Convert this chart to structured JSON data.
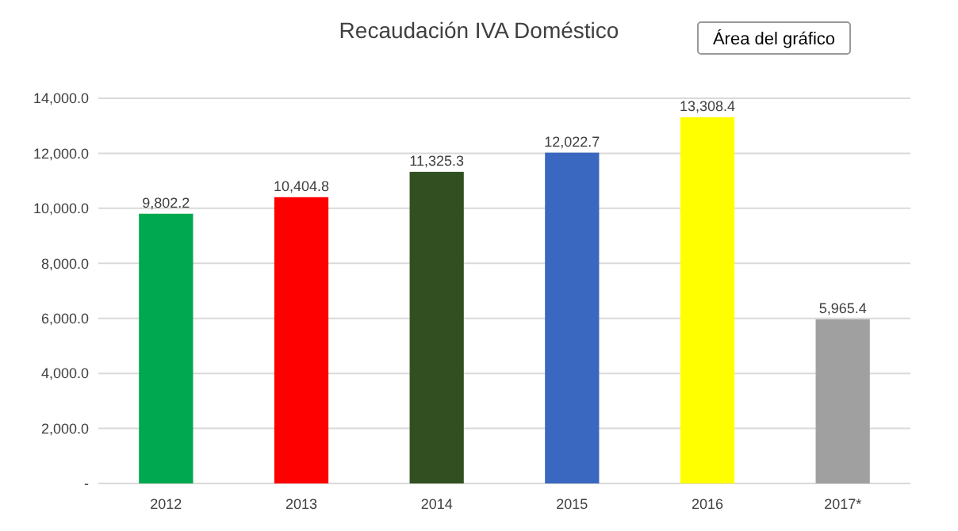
{
  "chart_data": {
    "type": "bar",
    "title": "Recaudación IVA Doméstico",
    "categories": [
      "2012",
      "2013",
      "2014",
      "2015",
      "2016",
      "2017*"
    ],
    "values": [
      9802.2,
      10404.8,
      11325.3,
      12022.7,
      13308.4,
      5965.4
    ],
    "colors": [
      "#00a84f",
      "#ff0000",
      "#324f21",
      "#3a67bf",
      "#ffff00",
      "#a0a0a0"
    ],
    "value_labels": [
      "9,802.2",
      "10,404.8",
      "11,325.3",
      "12,022.7",
      "13,308.4",
      "5,965.4"
    ],
    "ylim": [
      0,
      14000
    ],
    "yticks": [
      {
        "value": 0,
        "label": "-"
      },
      {
        "value": 2000,
        "label": "2,000.0"
      },
      {
        "value": 4000,
        "label": "4,000.0"
      },
      {
        "value": 6000,
        "label": "6,000.0"
      },
      {
        "value": 8000,
        "label": "8,000.0"
      },
      {
        "value": 10000,
        "label": "10,000.0"
      },
      {
        "value": 12000,
        "label": "12,000.0"
      },
      {
        "value": 14000,
        "label": "14,000.0"
      }
    ],
    "grid": "y",
    "annotations": [
      "Área del gráfico"
    ]
  }
}
